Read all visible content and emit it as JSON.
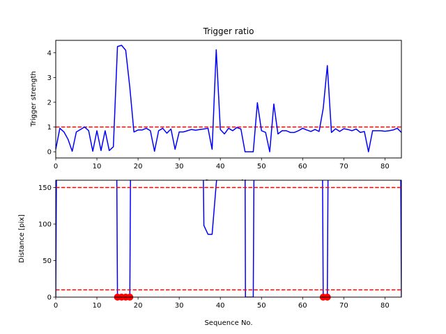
{
  "chart_data": [
    {
      "type": "line",
      "title": "Trigger ratio",
      "xlabel": "Sequence No.",
      "ylabel": "Trigger strength",
      "xlim": [
        0,
        84
      ],
      "ylim": [
        -0.25,
        4.5
      ],
      "xticks": [
        0,
        10,
        20,
        30,
        40,
        50,
        60,
        70,
        80
      ],
      "yticks": [
        0,
        1,
        2,
        3,
        4
      ],
      "grid": false,
      "series": [
        {
          "color": "#0000ff",
          "x": [
            0,
            1,
            2,
            3,
            4,
            5,
            6,
            7,
            8,
            9,
            10,
            11,
            12,
            13,
            14,
            15,
            16,
            17,
            18,
            19,
            20,
            21,
            22,
            23,
            24,
            25,
            26,
            27,
            28,
            29,
            30,
            31,
            32,
            33,
            34,
            35,
            36,
            37,
            38,
            39,
            40,
            41,
            42,
            43,
            44,
            45,
            46,
            47,
            48,
            49,
            50,
            51,
            52,
            53,
            54,
            55,
            56,
            57,
            58,
            59,
            60,
            61,
            62,
            63,
            64,
            65,
            66,
            67,
            68,
            69,
            70,
            71,
            72,
            73,
            74,
            75,
            76,
            77,
            78,
            79,
            80,
            81,
            82,
            83,
            84
          ],
          "y": [
            0.1,
            0.95,
            0.8,
            0.5,
            0.02,
            0.8,
            0.9,
            1.0,
            0.85,
            0.02,
            0.85,
            0.05,
            0.85,
            0.05,
            0.2,
            4.25,
            4.3,
            4.1,
            2.6,
            0.8,
            0.88,
            0.88,
            0.95,
            0.85,
            0.02,
            0.85,
            0.95,
            0.75,
            0.92,
            0.1,
            0.8,
            0.8,
            0.85,
            0.9,
            0.87,
            0.9,
            0.92,
            0.95,
            0.1,
            4.12,
            0.9,
            0.72,
            0.95,
            0.85,
            0.98,
            0.92,
            0.0,
            0.0,
            0.0,
            1.98,
            0.85,
            0.78,
            0.0,
            1.93,
            0.72,
            0.85,
            0.85,
            0.78,
            0.78,
            0.85,
            0.95,
            0.88,
            0.82,
            0.9,
            0.82,
            1.75,
            3.48,
            0.78,
            0.93,
            0.82,
            0.93,
            0.9,
            0.85,
            0.92,
            0.78,
            0.82,
            0.0,
            0.85,
            0.85,
            0.85,
            0.83,
            0.85,
            0.88,
            0.95,
            0.78
          ]
        }
      ],
      "threshold_lines": [
        {
          "y": 1.0,
          "color": "#ff0000",
          "style": "dashed"
        }
      ]
    },
    {
      "type": "line",
      "title": "",
      "xlabel": "Sequence No.",
      "ylabel": "Distance [pix]",
      "xlim": [
        0,
        84
      ],
      "ylim": [
        0,
        160
      ],
      "xticks": [
        0,
        10,
        20,
        30,
        40,
        50,
        60,
        70,
        80
      ],
      "yticks": [
        0,
        50,
        100,
        150
      ],
      "grid": false,
      "series": [
        {
          "color": "#0000ff",
          "x": [
            0,
            0.2,
            14.8,
            15,
            16,
            17,
            18,
            18.2,
            35.8,
            36,
            37,
            38,
            39,
            39.8,
            46,
            46.1,
            48,
            48.2,
            64.8,
            65,
            66,
            66.2,
            83.8,
            84
          ],
          "y": [
            0,
            200,
            200,
            0,
            0,
            0,
            0,
            200,
            200,
            98,
            86,
            86,
            155,
            200,
            200,
            0,
            0,
            200,
            200,
            0,
            0,
            200,
            200,
            0
          ]
        }
      ],
      "markers": {
        "color": "#ff0000",
        "x": [
          15,
          16,
          17,
          18,
          65,
          66
        ],
        "y": [
          0,
          0,
          0,
          0,
          0,
          0
        ]
      },
      "threshold_lines": [
        {
          "y": 150,
          "color": "#ff0000",
          "style": "dashed"
        },
        {
          "y": 10,
          "color": "#ff0000",
          "style": "dashed"
        }
      ]
    }
  ]
}
